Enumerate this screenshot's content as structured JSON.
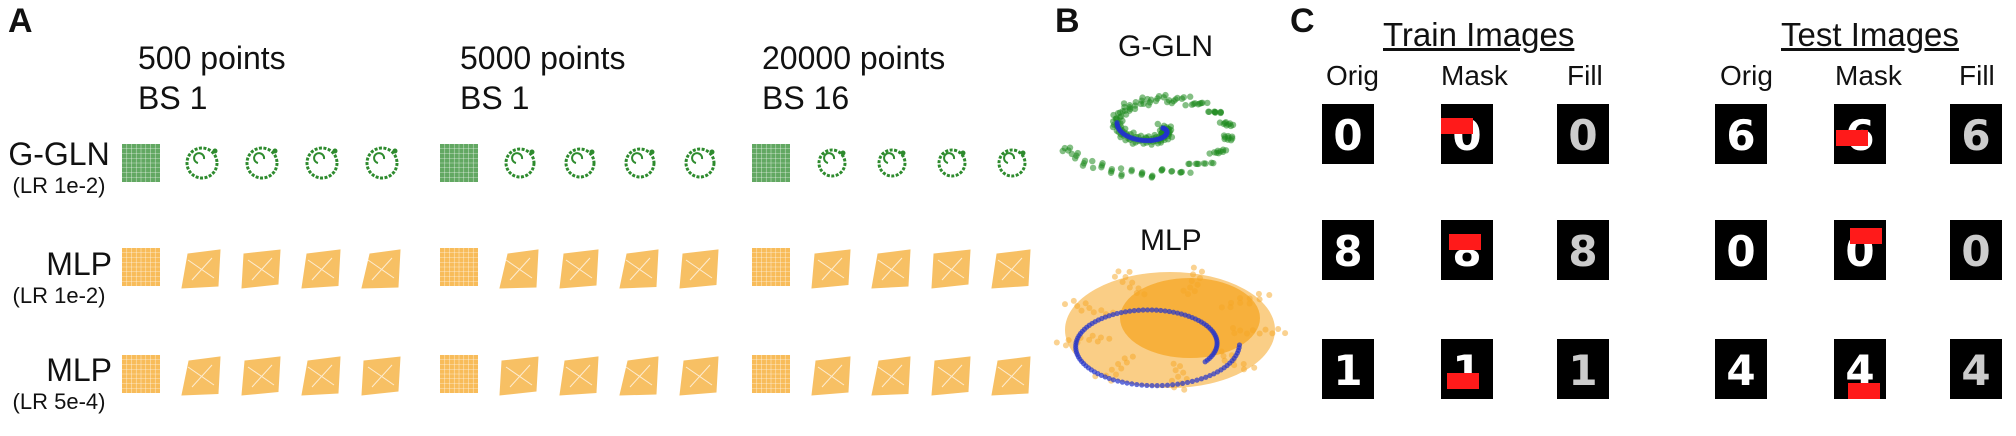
{
  "panels": {
    "a": "A",
    "b": "B",
    "c": "C"
  },
  "panel_a": {
    "columns": [
      {
        "line1": "500 points",
        "line2": "BS 1"
      },
      {
        "line1": "5000 points",
        "line2": "BS 1"
      },
      {
        "line1": "20000 points",
        "line2": "BS 16"
      }
    ],
    "rows": [
      {
        "main": "G-GLN",
        "sub": "(LR 1e-2)",
        "color": "#2e8b2e"
      },
      {
        "main": "MLP",
        "sub": "(LR 1e-2)",
        "color": "#f5a623"
      },
      {
        "main": "MLP",
        "sub": "(LR 5e-4)",
        "color": "#f5a623"
      }
    ]
  },
  "panel_b": {
    "top_title": "G-GLN",
    "bottom_title": "MLP",
    "colors": {
      "ggln": "#1f8a1f",
      "mlp": "#f5a623",
      "target": "#2233cc"
    }
  },
  "panel_c": {
    "train_title": "Train Images",
    "test_title": "Test Images",
    "col_labels": [
      "Orig",
      "Mask",
      "Fill"
    ],
    "train_digits": [
      "0",
      "8",
      "1"
    ],
    "test_digits": [
      "6",
      "0",
      "4"
    ],
    "mask_color": "#ff1a1a"
  }
}
